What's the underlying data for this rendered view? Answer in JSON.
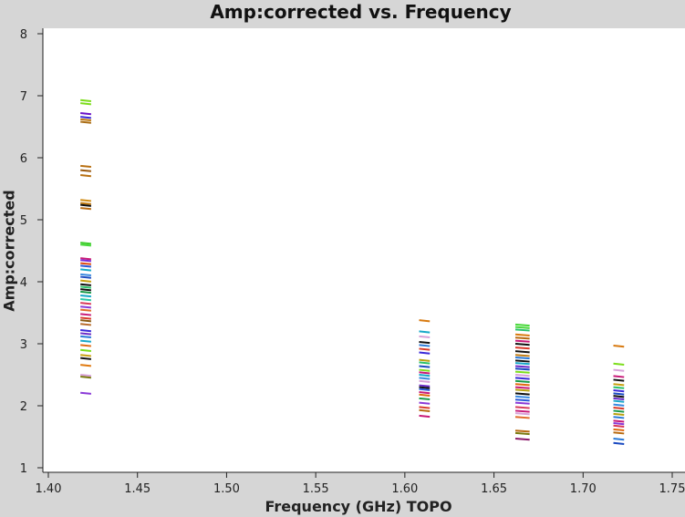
{
  "chart_data": {
    "type": "scatter",
    "title": "Amp:corrected vs. Frequency",
    "xlabel": "Frequency (GHz) TOPO",
    "ylabel": "Amp:corrected",
    "xlim": [
      1.4,
      1.75
    ],
    "ylim": [
      1,
      8
    ],
    "x_ticks": [
      "1.40",
      "1.45",
      "1.50",
      "1.55",
      "1.60",
      "1.65",
      "1.70",
      "1.75"
    ],
    "y_ticks": [
      "1",
      "2",
      "3",
      "4",
      "5",
      "6",
      "7",
      "8"
    ],
    "grid": false,
    "legend": "none",
    "clusters": [
      {
        "x_range": [
          1.418,
          1.424
        ],
        "points": [
          {
            "y": 6.93,
            "color": "#7cdd1c"
          },
          {
            "y": 6.88,
            "color": "#7cdd1c"
          },
          {
            "y": 6.72,
            "color": "#6a12c8"
          },
          {
            "y": 6.66,
            "color": "#3a2ad8"
          },
          {
            "y": 6.62,
            "color": "#c07a10"
          },
          {
            "y": 6.58,
            "color": "#a86a10"
          },
          {
            "y": 5.87,
            "color": "#b87012"
          },
          {
            "y": 5.8,
            "color": "#9a5a10"
          },
          {
            "y": 5.72,
            "color": "#b87012"
          },
          {
            "y": 5.32,
            "color": "#d08a10"
          },
          {
            "y": 5.27,
            "color": "#c07a10"
          },
          {
            "y": 5.24,
            "color": "#111111"
          },
          {
            "y": 5.19,
            "color": "#b86a10"
          },
          {
            "y": 4.63,
            "color": "#3ccc2a"
          },
          {
            "y": 4.6,
            "color": "#48d83a"
          },
          {
            "y": 4.38,
            "color": "#c81a78"
          },
          {
            "y": 4.35,
            "color": "#7a2ad8"
          },
          {
            "y": 4.3,
            "color": "#e04a10"
          },
          {
            "y": 4.26,
            "color": "#2a5ad8"
          },
          {
            "y": 4.2,
            "color": "#18a8c8"
          },
          {
            "y": 4.12,
            "color": "#3a8ae0"
          },
          {
            "y": 4.08,
            "color": "#1a4ac0"
          },
          {
            "y": 4.02,
            "color": "#c8a010"
          },
          {
            "y": 3.96,
            "color": "#111111"
          },
          {
            "y": 3.92,
            "color": "#2ac06a"
          },
          {
            "y": 3.88,
            "color": "#111111"
          },
          {
            "y": 3.84,
            "color": "#1a9a4a"
          },
          {
            "y": 3.78,
            "color": "#18a8c8"
          },
          {
            "y": 3.72,
            "color": "#2ac8a8"
          },
          {
            "y": 3.66,
            "color": "#d83a5a"
          },
          {
            "y": 3.6,
            "color": "#8a3ad8"
          },
          {
            "y": 3.55,
            "color": "#e06a2a"
          },
          {
            "y": 3.48,
            "color": "#c81a78"
          },
          {
            "y": 3.42,
            "color": "#d83a2a"
          },
          {
            "y": 3.38,
            "color": "#8a5a10"
          },
          {
            "y": 3.32,
            "color": "#b86a2a"
          },
          {
            "y": 3.22,
            "color": "#3a2ad8"
          },
          {
            "y": 3.17,
            "color": "#6a2ac8"
          },
          {
            "y": 3.12,
            "color": "#2a7ad8"
          },
          {
            "y": 3.05,
            "color": "#18a8c8"
          },
          {
            "y": 2.98,
            "color": "#e06a10"
          },
          {
            "y": 2.9,
            "color": "#7cdd1c"
          },
          {
            "y": 2.82,
            "color": "#c8a010"
          },
          {
            "y": 2.77,
            "color": "#111111"
          },
          {
            "y": 2.66,
            "color": "#e07a10"
          },
          {
            "y": 2.5,
            "color": "#d8a0d8"
          },
          {
            "y": 2.47,
            "color": "#7a7a10"
          },
          {
            "y": 2.21,
            "color": "#8a3ad8"
          }
        ]
      },
      {
        "x_range": [
          1.608,
          1.614
        ],
        "points": [
          {
            "y": 3.38,
            "color": "#d87a10"
          },
          {
            "y": 3.2,
            "color": "#18a8c8"
          },
          {
            "y": 3.12,
            "color": "#d8a0d8"
          },
          {
            "y": 3.03,
            "color": "#111111"
          },
          {
            "y": 2.98,
            "color": "#2a7ad8"
          },
          {
            "y": 2.92,
            "color": "#d83a2a"
          },
          {
            "y": 2.86,
            "color": "#3a2ad8"
          },
          {
            "y": 2.74,
            "color": "#b8a010"
          },
          {
            "y": 2.7,
            "color": "#2ac06a"
          },
          {
            "y": 2.64,
            "color": "#1a4ac0"
          },
          {
            "y": 2.58,
            "color": "#7cdd1c"
          },
          {
            "y": 2.54,
            "color": "#c81a78"
          },
          {
            "y": 2.5,
            "color": "#18a8c8"
          },
          {
            "y": 2.45,
            "color": "#3a8ae0"
          },
          {
            "y": 2.4,
            "color": "#d8a0d8"
          },
          {
            "y": 2.33,
            "color": "#6a2ac8"
          },
          {
            "y": 2.3,
            "color": "#111111"
          },
          {
            "y": 2.27,
            "color": "#2a5ad8"
          },
          {
            "y": 2.22,
            "color": "#c81a78"
          },
          {
            "y": 2.18,
            "color": "#e06a10"
          },
          {
            "y": 2.12,
            "color": "#1a9a4a"
          },
          {
            "y": 2.05,
            "color": "#8a3ad8"
          },
          {
            "y": 1.98,
            "color": "#d83a2a"
          },
          {
            "y": 1.93,
            "color": "#b86a10"
          },
          {
            "y": 1.84,
            "color": "#c81a78"
          }
        ]
      },
      {
        "x_range": [
          1.662,
          1.67
        ],
        "points": [
          {
            "y": 3.31,
            "color": "#48d83a"
          },
          {
            "y": 3.27,
            "color": "#48d83a"
          },
          {
            "y": 3.23,
            "color": "#2ac06a"
          },
          {
            "y": 3.15,
            "color": "#d87a10"
          },
          {
            "y": 3.1,
            "color": "#b86a10"
          },
          {
            "y": 3.05,
            "color": "#c81a78"
          },
          {
            "y": 3.0,
            "color": "#111111"
          },
          {
            "y": 2.94,
            "color": "#d83a2a"
          },
          {
            "y": 2.88,
            "color": "#111111"
          },
          {
            "y": 2.82,
            "color": "#c07a10"
          },
          {
            "y": 2.78,
            "color": "#2a7ad8"
          },
          {
            "y": 2.73,
            "color": "#111111"
          },
          {
            "y": 2.69,
            "color": "#18a8c8"
          },
          {
            "y": 2.64,
            "color": "#6a2ac8"
          },
          {
            "y": 2.6,
            "color": "#1a4ac0"
          },
          {
            "y": 2.55,
            "color": "#7cdd1c"
          },
          {
            "y": 2.5,
            "color": "#d8a0d8"
          },
          {
            "y": 2.45,
            "color": "#3a2ad8"
          },
          {
            "y": 2.4,
            "color": "#1a9a4a"
          },
          {
            "y": 2.35,
            "color": "#e06a10"
          },
          {
            "y": 2.3,
            "color": "#c81a78"
          },
          {
            "y": 2.26,
            "color": "#b8a010"
          },
          {
            "y": 2.2,
            "color": "#111111"
          },
          {
            "y": 2.15,
            "color": "#3a8ae0"
          },
          {
            "y": 2.1,
            "color": "#2a5ad8"
          },
          {
            "y": 2.05,
            "color": "#8a3ad8"
          },
          {
            "y": 1.98,
            "color": "#d83a5a"
          },
          {
            "y": 1.92,
            "color": "#c81a78"
          },
          {
            "y": 1.88,
            "color": "#d8a0d8"
          },
          {
            "y": 1.82,
            "color": "#e06a2a"
          },
          {
            "y": 1.6,
            "color": "#b86a10"
          },
          {
            "y": 1.56,
            "color": "#7a7a10"
          },
          {
            "y": 1.47,
            "color": "#8a1a6a"
          }
        ]
      },
      {
        "x_range": [
          1.717,
          1.723
        ],
        "points": [
          {
            "y": 2.97,
            "color": "#d87a10"
          },
          {
            "y": 2.68,
            "color": "#7cdd1c"
          },
          {
            "y": 2.58,
            "color": "#d8a0d8"
          },
          {
            "y": 2.48,
            "color": "#c81a78"
          },
          {
            "y": 2.42,
            "color": "#111111"
          },
          {
            "y": 2.35,
            "color": "#c8a010"
          },
          {
            "y": 2.3,
            "color": "#2ac06a"
          },
          {
            "y": 2.25,
            "color": "#3a2ad8"
          },
          {
            "y": 2.2,
            "color": "#1a4ac0"
          },
          {
            "y": 2.16,
            "color": "#111111"
          },
          {
            "y": 2.12,
            "color": "#6a2ac8"
          },
          {
            "y": 2.08,
            "color": "#18a8c8"
          },
          {
            "y": 2.02,
            "color": "#3a8ae0"
          },
          {
            "y": 1.97,
            "color": "#d83a2a"
          },
          {
            "y": 1.92,
            "color": "#1a9a4a"
          },
          {
            "y": 1.87,
            "color": "#b8a010"
          },
          {
            "y": 1.82,
            "color": "#2a7ad8"
          },
          {
            "y": 1.76,
            "color": "#c81a78"
          },
          {
            "y": 1.72,
            "color": "#8a3ad8"
          },
          {
            "y": 1.68,
            "color": "#d83a5a"
          },
          {
            "y": 1.62,
            "color": "#e06a10"
          },
          {
            "y": 1.57,
            "color": "#b86a10"
          },
          {
            "y": 1.47,
            "color": "#2a7ad8"
          },
          {
            "y": 1.4,
            "color": "#1a4ac0"
          }
        ]
      }
    ]
  }
}
